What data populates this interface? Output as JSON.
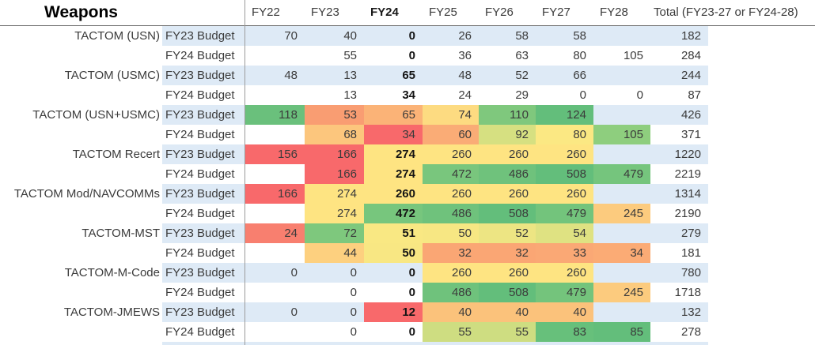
{
  "header": {
    "weapons_label": "Weapons",
    "years": [
      "FY22",
      "FY23",
      "FY24",
      "FY25",
      "FY26",
      "FY27",
      "FY28"
    ],
    "bold_year": "FY24",
    "total_label": "Total (FY23-27 or FY24-28)"
  },
  "colors": {
    "band_blue": "#DEEAF6",
    "grid_line": "#9B9B9B",
    "header_rule": "#6E6E6E",
    "scale_red": "#F8696B",
    "scale_yellow": "#FEE482",
    "scale_green": "#63BE7B"
  },
  "rows": [
    {
      "weapon": "TACTOM (USN)",
      "budget_label": "FY23 Budget",
      "banded": true,
      "fy24_bold": true,
      "values": [
        "70",
        "40",
        "0",
        "26",
        "58",
        "58",
        ""
      ],
      "fills": [
        "",
        "",
        "",
        "",
        "",
        "",
        ""
      ],
      "total": "182"
    },
    {
      "weapon": "",
      "budget_label": "FY24 Budget",
      "banded": false,
      "fy24_bold": true,
      "values": [
        "",
        "55",
        "0",
        "36",
        "63",
        "80",
        "105"
      ],
      "fills": [
        "",
        "",
        "",
        "",
        "",
        "",
        ""
      ],
      "total": "284"
    },
    {
      "weapon": "TACTOM (USMC)",
      "budget_label": "FY23 Budget",
      "banded": true,
      "fy24_bold": true,
      "values": [
        "48",
        "13",
        "65",
        "48",
        "52",
        "66",
        ""
      ],
      "fills": [
        "",
        "",
        "",
        "",
        "",
        "",
        ""
      ],
      "total": "244"
    },
    {
      "weapon": "",
      "budget_label": "FY24 Budget",
      "banded": false,
      "fy24_bold": true,
      "values": [
        "",
        "13",
        "34",
        "24",
        "29",
        "0",
        "0"
      ],
      "fills": [
        "",
        "",
        "",
        "",
        "",
        "",
        ""
      ],
      "total": "87"
    },
    {
      "weapon": "TACTOM (USN+USMC)",
      "budget_label": "FY23 Budget",
      "banded": true,
      "fy24_bold": false,
      "values": [
        "118",
        "53",
        "65",
        "74",
        "110",
        "124",
        ""
      ],
      "fills": [
        "#6AC07C",
        "#F99D72",
        "#FBB377",
        "#FDDB81",
        "#7FC87D",
        "#63BE7B",
        ""
      ],
      "total": "426"
    },
    {
      "weapon": "",
      "budget_label": "FY24 Budget",
      "banded": false,
      "fy24_bold": false,
      "values": [
        "",
        "68",
        "34",
        "60",
        "92",
        "80",
        "105"
      ],
      "fills": [
        "",
        "#FCC67D",
        "#F8696B",
        "#FAAC76",
        "#D6E081",
        "#FBE883",
        "#8ECE7E"
      ],
      "total": "371"
    },
    {
      "weapon": "TACTOM Recert",
      "budget_label": "FY23 Budget",
      "banded": true,
      "fy24_bold": true,
      "values": [
        "156",
        "166",
        "274",
        "260",
        "260",
        "260",
        ""
      ],
      "fills": [
        "#F8696B",
        "#F8696B",
        "#FEE482",
        "#FEE482",
        "#FEE482",
        "#FEE482",
        ""
      ],
      "total": "1220"
    },
    {
      "weapon": "",
      "budget_label": "FY24 Budget",
      "banded": false,
      "fy24_bold": true,
      "values": [
        "",
        "166",
        "274",
        "472",
        "486",
        "508",
        "479"
      ],
      "fills": [
        "",
        "#F8696B",
        "#FEE482",
        "#79C67D",
        "#6FC27C",
        "#63BE7B",
        "#75C57D"
      ],
      "total": "2219"
    },
    {
      "weapon": "TACTOM Mod/NAVCOMMs",
      "budget_label": "FY23 Budget",
      "banded": true,
      "fy24_bold": true,
      "values": [
        "166",
        "274",
        "260",
        "260",
        "260",
        "260",
        ""
      ],
      "fills": [
        "#F8696B",
        "#FEE482",
        "#FEE482",
        "#FEE482",
        "#FEE482",
        "#FEE482",
        ""
      ],
      "total": "1314"
    },
    {
      "weapon": "",
      "budget_label": "FY24 Budget",
      "banded": false,
      "fy24_bold": true,
      "values": [
        "",
        "274",
        "472",
        "486",
        "508",
        "479",
        "245"
      ],
      "fills": [
        "",
        "#FEE482",
        "#77C67D",
        "#6FC27C",
        "#63BE7B",
        "#73C47C",
        "#FCCB7E"
      ],
      "total": "2190"
    },
    {
      "weapon": "TACTOM-MST",
      "budget_label": "FY23 Budget",
      "banded": true,
      "fy24_bold": true,
      "values": [
        "24",
        "72",
        "51",
        "50",
        "52",
        "54",
        ""
      ],
      "fills": [
        "#F87F6F",
        "#7EC87D",
        "#F9E883",
        "#F7E783",
        "#EDE583",
        "#DFE282",
        ""
      ],
      "total": "279"
    },
    {
      "weapon": "",
      "budget_label": "FY24 Budget",
      "banded": false,
      "fy24_bold": true,
      "values": [
        "",
        "44",
        "50",
        "32",
        "32",
        "33",
        "34"
      ],
      "fills": [
        "",
        "#FDD07F",
        "#F8E783",
        "#FAA674",
        "#FAA674",
        "#FAA875",
        "#FBAB75"
      ],
      "total": "181"
    },
    {
      "weapon": "TACTOM-M-Code",
      "budget_label": "FY23 Budget",
      "banded": true,
      "fy24_bold": true,
      "values": [
        "0",
        "0",
        "0",
        "260",
        "260",
        "260",
        ""
      ],
      "fills": [
        "",
        "",
        "",
        "#FEE482",
        "#FEE482",
        "#FEE482",
        ""
      ],
      "total": "780"
    },
    {
      "weapon": "",
      "budget_label": "FY24 Budget",
      "banded": false,
      "fy24_bold": true,
      "values": [
        "",
        "0",
        "0",
        "486",
        "508",
        "479",
        "245"
      ],
      "fills": [
        "",
        "",
        "",
        "#6FC27C",
        "#63BE7B",
        "#74C47C",
        "#FCCB7E"
      ],
      "total": "1718"
    },
    {
      "weapon": "TACTOM-JMEWS",
      "budget_label": "FY23 Budget",
      "banded": true,
      "fy24_bold": true,
      "values": [
        "0",
        "0",
        "12",
        "40",
        "40",
        "40",
        ""
      ],
      "fills": [
        "",
        "",
        "#F8696B",
        "#FBC27B",
        "#FBC27B",
        "#FBC27B",
        ""
      ],
      "total": "132"
    },
    {
      "weapon": "",
      "budget_label": "FY24 Budget",
      "banded": false,
      "fy24_bold": true,
      "values": [
        "",
        "0",
        "0",
        "55",
        "55",
        "83",
        "85"
      ],
      "fills": [
        "",
        "",
        "",
        "#CEDD81",
        "#CEDD81",
        "#67C07B",
        "#63BE7B"
      ],
      "total": "278"
    }
  ]
}
